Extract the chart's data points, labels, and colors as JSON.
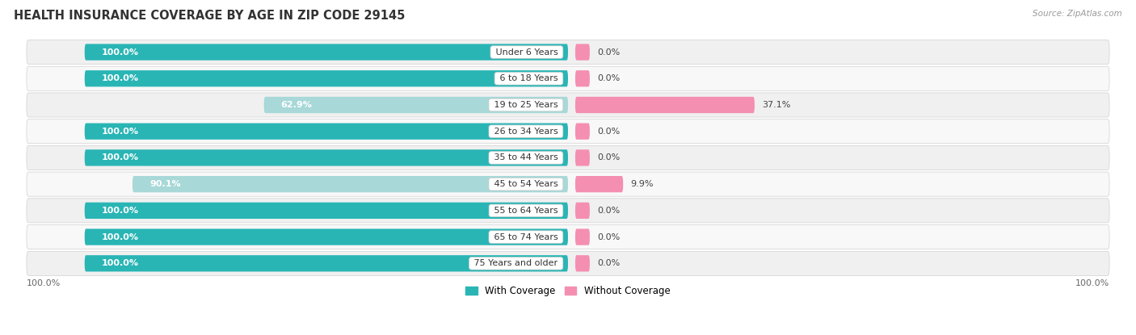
{
  "title": "HEALTH INSURANCE COVERAGE BY AGE IN ZIP CODE 29145",
  "source": "Source: ZipAtlas.com",
  "categories": [
    "Under 6 Years",
    "6 to 18 Years",
    "19 to 25 Years",
    "26 to 34 Years",
    "35 to 44 Years",
    "45 to 54 Years",
    "55 to 64 Years",
    "65 to 74 Years",
    "75 Years and older"
  ],
  "with_coverage": [
    100.0,
    100.0,
    62.9,
    100.0,
    100.0,
    90.1,
    100.0,
    100.0,
    100.0
  ],
  "without_coverage": [
    0.0,
    0.0,
    37.1,
    0.0,
    0.0,
    9.9,
    0.0,
    0.0,
    0.0
  ],
  "without_coverage_display": [
    3.0,
    3.0,
    37.1,
    3.0,
    3.0,
    9.9,
    3.0,
    3.0,
    3.0
  ],
  "color_with": "#2ab5b5",
  "color_without": "#f48fb1",
  "color_with_light": "#a8d8d8",
  "title_fontsize": 10.5,
  "bar_label_fontsize": 8.0,
  "category_fontsize": 8.0,
  "legend_fontsize": 8.5,
  "axis_label_fontsize": 8,
  "legend_label_with": "With Coverage",
  "legend_label_without": "Without Coverage"
}
